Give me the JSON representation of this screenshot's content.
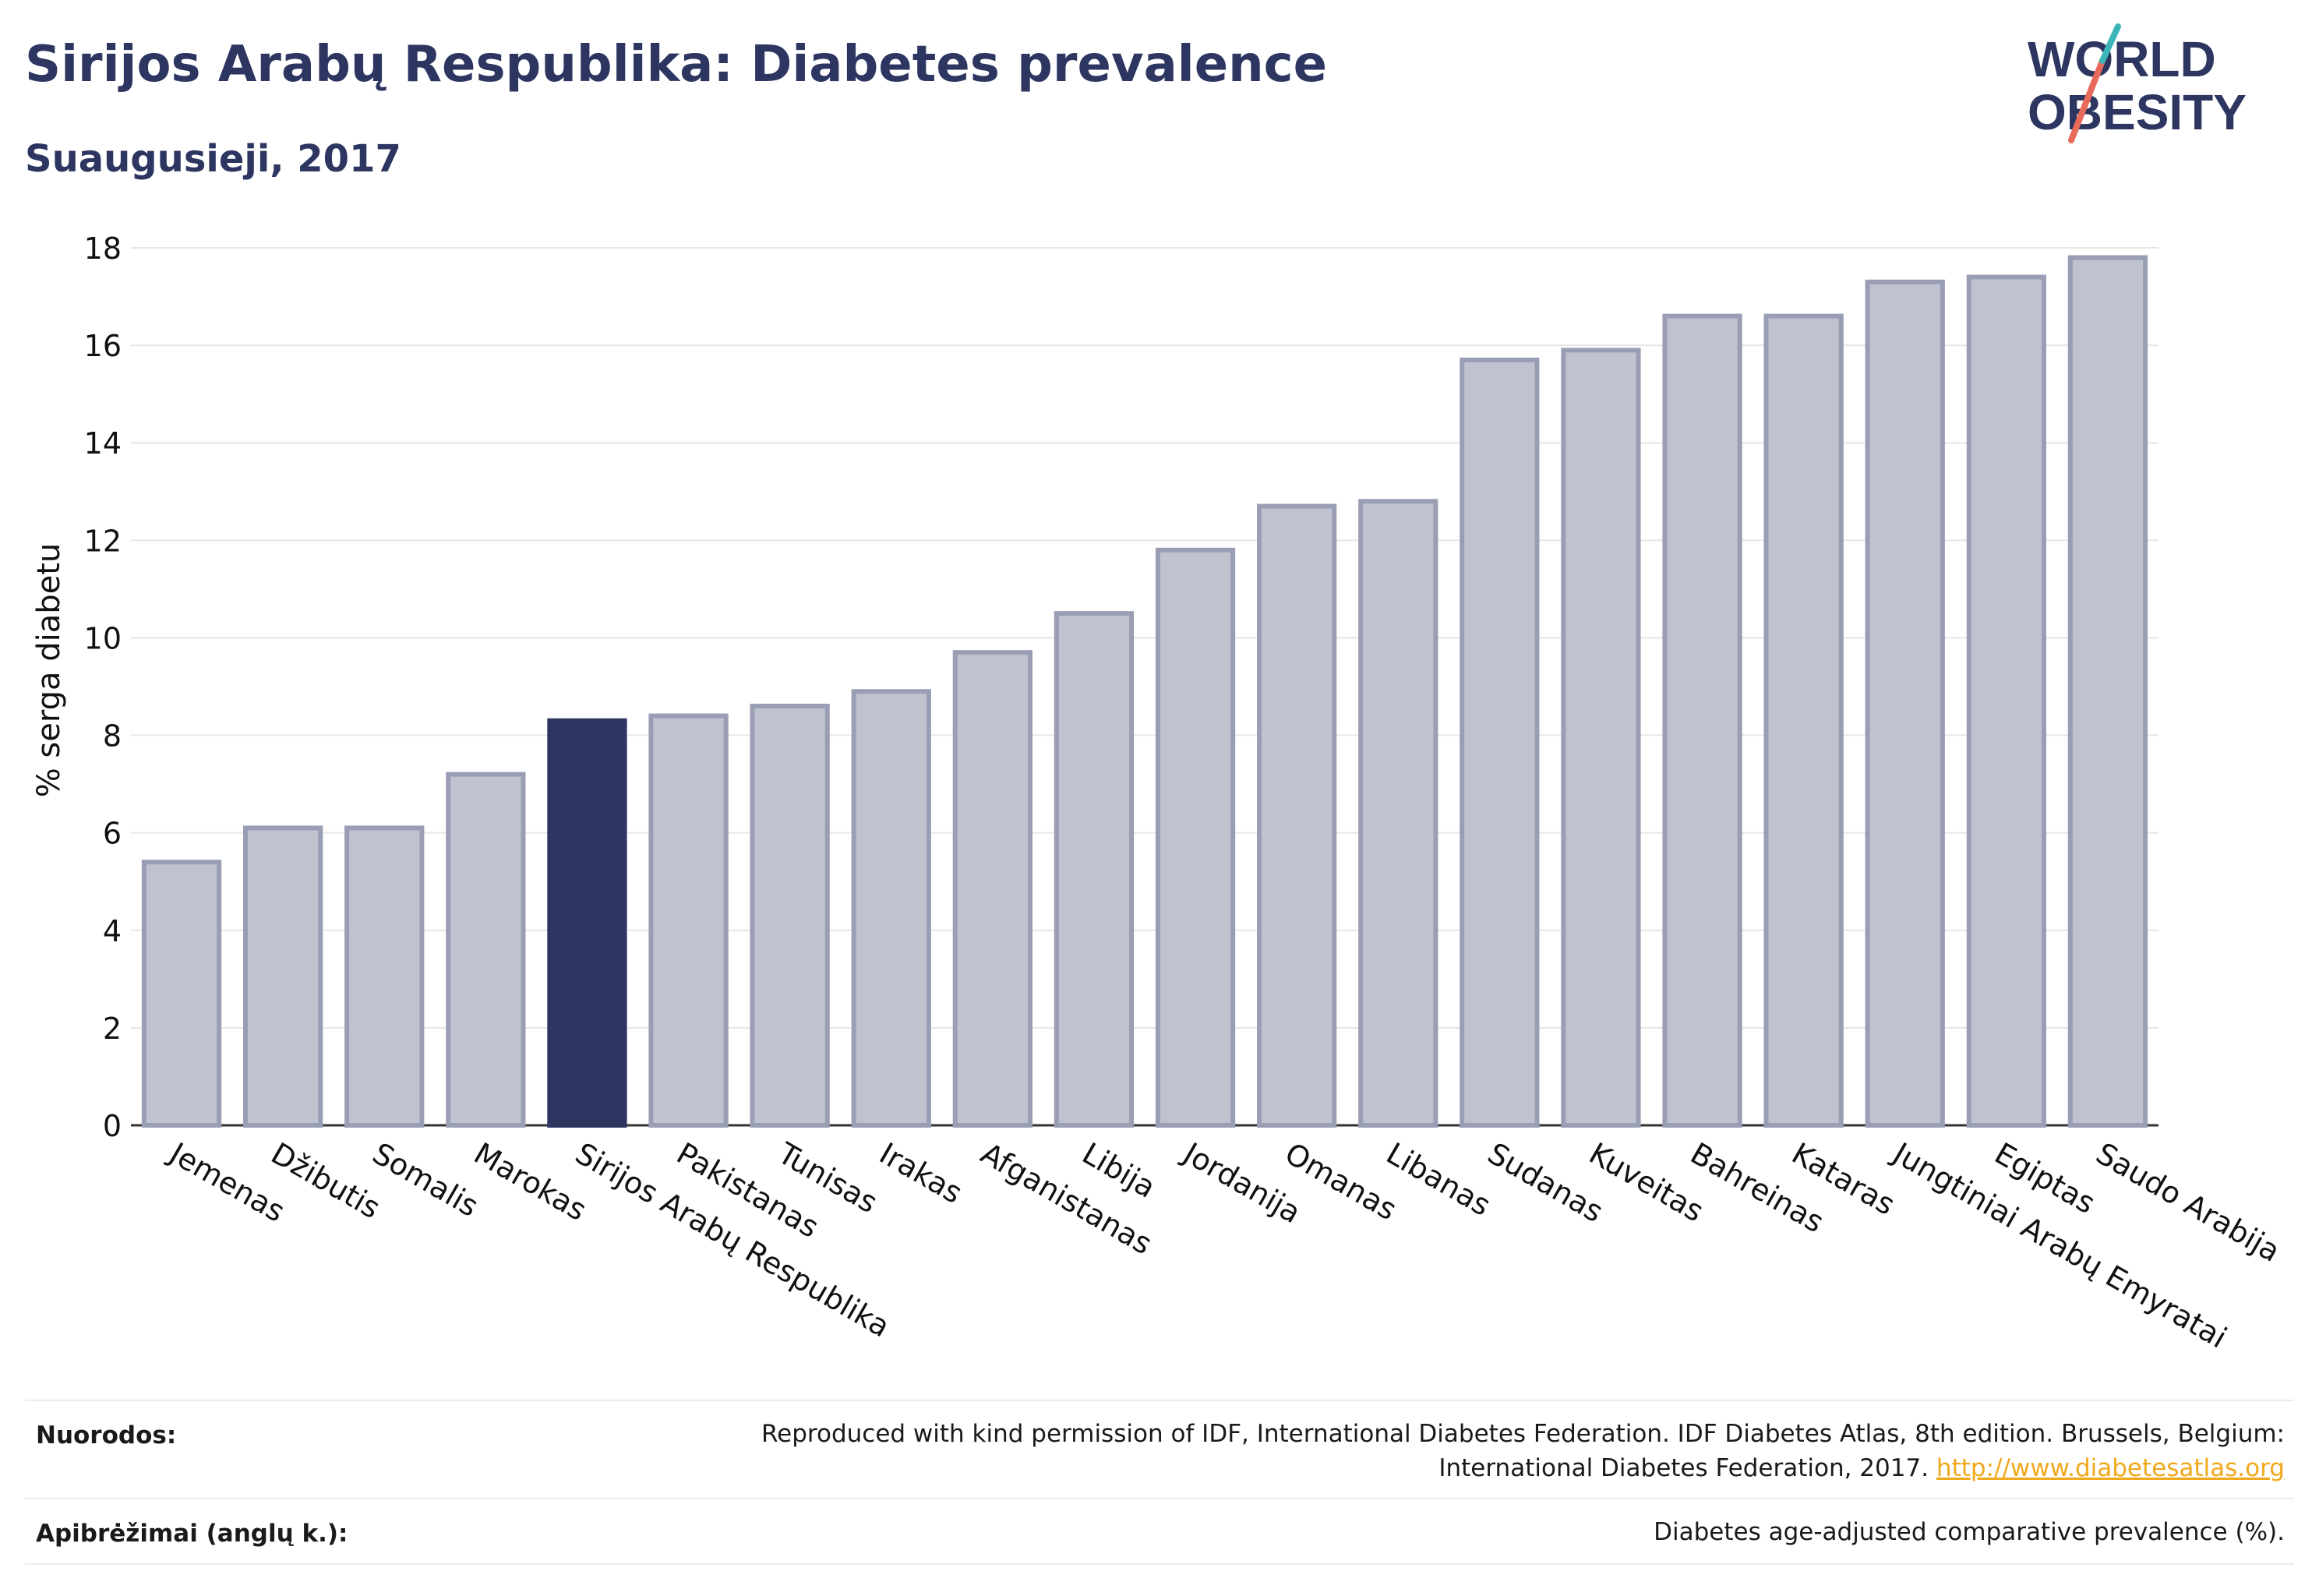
{
  "header": {
    "title": "Sirijos Arabų Respublika: Diabetes prevalence",
    "subtitle": "Suaugusieji, 2017"
  },
  "logo": {
    "line1": "WORLD",
    "line2": "OBESITY"
  },
  "chart_data": {
    "type": "bar",
    "ylabel": "% serga diabetu",
    "ylim": [
      0,
      18
    ],
    "yticks": [
      0,
      2,
      4,
      6,
      8,
      10,
      12,
      14,
      16,
      18
    ],
    "grid": true,
    "highlight": "Sirijos Arabų Respublika",
    "categories": [
      "Jemenas",
      "Džibutis",
      "Somalis",
      "Marokas",
      "Sirijos Arabų Respublika",
      "Pakistanas",
      "Tunisas",
      "Irakas",
      "Afganistanas",
      "Libija",
      "Jordanija",
      "Omanas",
      "Libanas",
      "Sudanas",
      "Kuveitas",
      "Bahreinas",
      "Kataras",
      "Jungtiniai Arabų Emyratai",
      "Egiptas",
      "Saudo Arabija"
    ],
    "values": [
      5.4,
      6.1,
      6.1,
      7.2,
      8.3,
      8.4,
      8.6,
      8.9,
      9.7,
      10.5,
      11.8,
      12.7,
      12.8,
      15.7,
      15.9,
      16.6,
      16.6,
      17.3,
      17.4,
      17.8
    ],
    "colors": {
      "bar": "#bfc2cf",
      "bar_border": "#9a9eb5",
      "highlight": "#2d3561",
      "grid": "#e6e6e6",
      "axis": "#333333"
    }
  },
  "footer": {
    "sources_label": "Nuorodos:",
    "sources_text_1": "Reproduced with kind permission of IDF, International Diabetes Federation. IDF Diabetes Atlas, 8th edition. Brussels, Belgium:",
    "sources_text_2": "International Diabetes Federation, 2017.",
    "sources_link": "http://www.diabetesatlas.org",
    "definitions_label": "Apibrėžimai (anglų k.):",
    "definitions_text": "Diabetes age-adjusted comparative prevalence (%)."
  }
}
